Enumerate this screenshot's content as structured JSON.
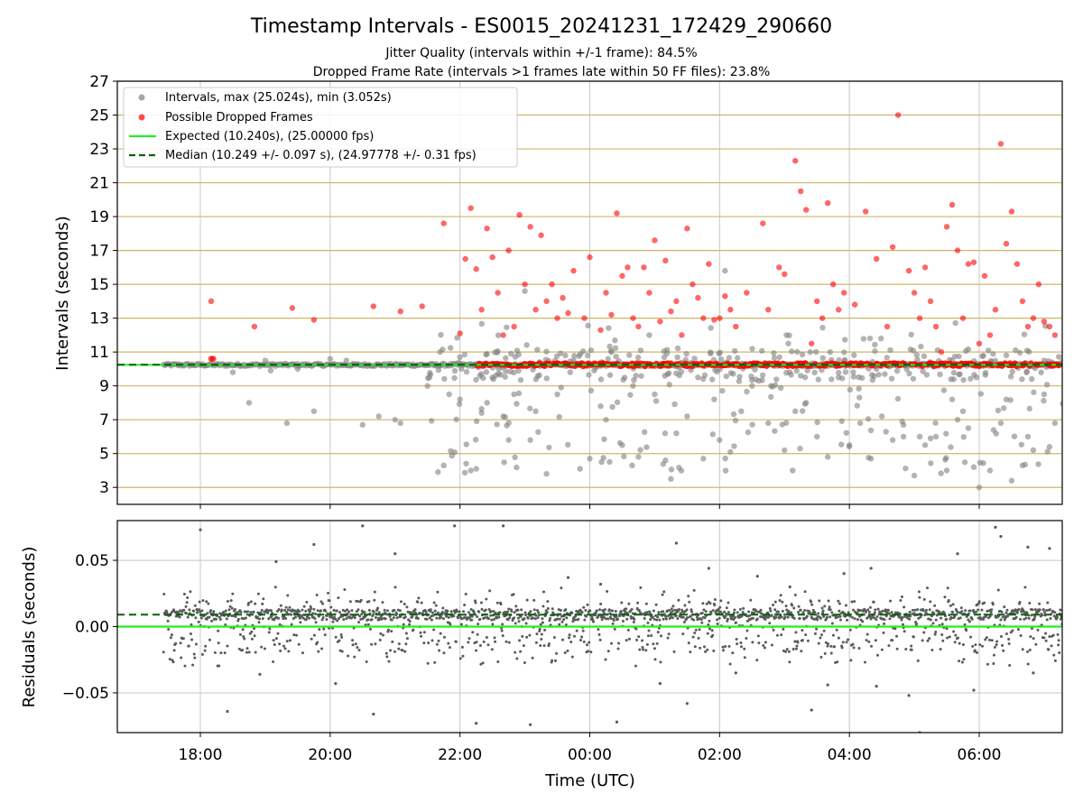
{
  "figure": {
    "title": "Timestamp Intervals - ES0015_20241231_172429_290660",
    "subtitle_1": "Jitter Quality (intervals within +/-1 frame): 84.5%",
    "subtitle_2": "Dropped Frame Rate (intervals >1 frames late within 50 FF files): 23.8%"
  },
  "colors": {
    "intervals": "#808080",
    "dropped": "#ff0000",
    "expected": "#22ee22",
    "median": "#006400",
    "hline": "#d2b469",
    "grid": "#c8c8c8",
    "residuals": "#5a5a5a"
  },
  "chart_data": [
    {
      "type": "scatter",
      "ylabel": "Intervals (seconds)",
      "ylim": [
        2,
        27
      ],
      "y_ticks": [
        "3",
        "5",
        "7",
        "9",
        "11",
        "13",
        "15",
        "17",
        "19",
        "21",
        "23",
        "25",
        "27"
      ],
      "x_tick_labels": [
        "18:00",
        "20:00",
        "22:00",
        "00:00",
        "02:00",
        "04:00",
        "06:00"
      ],
      "legend": [
        "Intervals, max (25.024s), min (3.052s)",
        "Possible Dropped Frames",
        "Expected (10.240s), (25.00000 fps)",
        "Median (10.249 +/- 0.097 s), (24.97778 +/- 0.31 fps)"
      ],
      "legend_position": "upper left",
      "expected_value": 10.24,
      "median_value": 10.249,
      "max_interval": 25.024,
      "min_interval": 3.052,
      "series": [
        {
          "name": "Intervals, max (25.024s), min (3.052s)",
          "x": [
            "18:30",
            "18:45",
            "19:00",
            "19:05",
            "19:20",
            "19:30",
            "19:45",
            "20:00",
            "20:15",
            "20:20",
            "20:30",
            "20:45",
            "21:00",
            "21:05",
            "21:30",
            "21:45",
            "21:50",
            "22:00",
            "22:10",
            "22:15",
            "22:20",
            "22:25",
            "22:30",
            "22:40",
            "22:45",
            "22:50",
            "23:00",
            "23:05",
            "23:10",
            "23:20",
            "23:30",
            "23:45",
            "00:00",
            "00:10",
            "00:15",
            "00:20",
            "00:30",
            "00:40",
            "00:45",
            "00:55",
            "01:00",
            "01:10",
            "01:15",
            "01:20",
            "01:30",
            "01:40",
            "01:45",
            "01:55",
            "02:00",
            "02:10",
            "02:20",
            "02:30",
            "02:45",
            "03:00",
            "03:10",
            "03:20",
            "03:30",
            "03:40",
            "03:50",
            "04:00",
            "04:10",
            "04:20",
            "04:30",
            "04:40",
            "04:50",
            "05:00",
            "05:10",
            "05:20",
            "05:30",
            "05:40",
            "05:50",
            "06:00",
            "06:10",
            "06:20",
            "06:30",
            "06:40",
            "06:50",
            "07:00",
            "07:05",
            "07:10",
            "05:55",
            "06:25",
            "06:45",
            "07:00",
            "02:05",
            "03:15",
            "04:25",
            "05:05",
            "05:15",
            "05:35",
            "05:45"
          ],
          "y": [
            9.8,
            8.0,
            10.5,
            9.9,
            6.8,
            10.0,
            7.5,
            10.6,
            10.5,
            10.2,
            6.7,
            7.2,
            7.0,
            6.8,
            9.0,
            4.3,
            8.5,
            8.2,
            4.0,
            4.1,
            7.4,
            8.0,
            9.5,
            7.2,
            5.8,
            8.5,
            14.6,
            5.8,
            7.5,
            3.8,
            8.5,
            10.5,
            4.7,
            7.8,
            7.0,
            11.0,
            5.5,
            9.0,
            4.8,
            12.0,
            8.5,
            4.6,
            3.5,
            6.2,
            7.2,
            9.5,
            4.7,
            8.2,
            5.8,
            5.1,
            7.5,
            9.0,
            6.8,
            5.2,
            7.5,
            8.0,
            6.0,
            4.8,
            9.5,
            5.5,
            6.8,
            4.7,
            7.2,
            5.8,
            6.0,
            3.7,
            5.5,
            6.0,
            4.0,
            7.0,
            6.5,
            3.0,
            4.0,
            6.8,
            3.4,
            4.3,
            5.2,
            8.5,
            5.4,
            6.8,
            4.2,
            8.2,
            6.0,
            10.5,
            15.8,
            9.6,
            10.0,
            6.0,
            5.9,
            8.2,
            7.5
          ]
        },
        {
          "name": "Possible Dropped Frames",
          "x": [
            "18:10",
            "18:50",
            "19:25",
            "19:45",
            "20:40",
            "21:05",
            "21:25",
            "21:45",
            "22:00",
            "22:05",
            "22:10",
            "22:15",
            "22:20",
            "22:25",
            "22:30",
            "22:35",
            "22:40",
            "22:45",
            "22:50",
            "22:55",
            "23:00",
            "23:05",
            "23:10",
            "23:15",
            "23:20",
            "23:25",
            "23:30",
            "23:35",
            "23:40",
            "23:45",
            "23:55",
            "00:00",
            "00:10",
            "00:15",
            "00:20",
            "00:25",
            "00:30",
            "00:35",
            "00:40",
            "00:45",
            "00:50",
            "00:55",
            "01:00",
            "01:05",
            "01:10",
            "01:15",
            "01:20",
            "01:25",
            "01:30",
            "01:35",
            "01:40",
            "01:45",
            "01:50",
            "01:55",
            "02:00",
            "02:05",
            "02:10",
            "02:15",
            "02:25",
            "02:40",
            "02:45",
            "02:55",
            "03:00",
            "03:10",
            "03:15",
            "03:20",
            "03:25",
            "03:30",
            "03:35",
            "03:40",
            "03:45",
            "03:50",
            "03:55",
            "04:05",
            "04:15",
            "04:25",
            "04:35",
            "04:40",
            "04:45",
            "04:55",
            "05:00",
            "05:05",
            "05:10",
            "05:15",
            "05:20",
            "05:25",
            "05:30",
            "05:35",
            "05:40",
            "05:45",
            "05:50",
            "05:55",
            "06:00",
            "06:05",
            "06:10",
            "06:15",
            "06:20",
            "06:25",
            "06:30",
            "06:35",
            "06:40",
            "06:45",
            "06:50",
            "06:55",
            "07:00",
            "07:05",
            "07:10"
          ],
          "y": [
            14.0,
            12.5,
            13.6,
            12.9,
            13.7,
            13.4,
            13.7,
            18.6,
            12.1,
            16.5,
            19.5,
            15.9,
            13.5,
            18.3,
            16.6,
            14.5,
            12.0,
            17.0,
            12.5,
            19.1,
            15.0,
            18.4,
            13.5,
            17.9,
            14.0,
            15.0,
            13.0,
            14.2,
            13.3,
            15.8,
            13.0,
            16.6,
            12.3,
            14.5,
            13.2,
            19.2,
            15.5,
            16.0,
            13.0,
            12.5,
            16.0,
            14.5,
            17.6,
            12.8,
            16.4,
            13.4,
            14.0,
            12.0,
            18.3,
            15.0,
            14.2,
            13.0,
            16.2,
            12.9,
            13.0,
            14.3,
            13.5,
            12.5,
            14.5,
            18.6,
            13.5,
            16.0,
            15.6,
            22.3,
            20.5,
            19.4,
            11.5,
            14.0,
            13.0,
            19.8,
            15.0,
            13.5,
            14.5,
            13.8,
            19.3,
            16.5,
            12.5,
            17.2,
            25.0,
            15.8,
            14.5,
            13.0,
            16.0,
            14.0,
            12.5,
            11.0,
            18.4,
            19.7,
            17.0,
            13.0,
            16.2,
            16.3,
            11.5,
            15.5,
            12.0,
            13.5,
            23.3,
            17.4,
            19.3,
            16.2,
            14.0,
            12.5,
            13.0,
            15.0,
            12.8,
            12.5,
            12.0
          ]
        }
      ]
    },
    {
      "type": "scatter",
      "xlabel": "Time (UTC)",
      "ylabel": "Residuals (seconds)",
      "ylim": [
        -0.08,
        0.08
      ],
      "y_ticks": [
        "0.05",
        "0.00",
        "−0.05"
      ],
      "x_tick_labels": [
        "18:00",
        "20:00",
        "22:00",
        "00:00",
        "02:00",
        "04:00",
        "06:00"
      ],
      "expected_residual": 0.0,
      "median_residual": 0.009,
      "series": [
        {
          "name": "",
          "x": [
            "18:00",
            "18:25",
            "18:55",
            "19:10",
            "19:45",
            "20:05",
            "20:30",
            "20:40",
            "21:00",
            "21:55",
            "22:15",
            "22:40",
            "23:05",
            "23:40",
            "00:10",
            "00:25",
            "01:05",
            "01:20",
            "01:30",
            "01:50",
            "02:15",
            "02:35",
            "03:05",
            "03:25",
            "03:40",
            "04:20",
            "04:55",
            "05:05",
            "05:40",
            "05:55",
            "06:15",
            "06:20",
            "06:45",
            "06:50",
            "07:05",
            "04:25",
            "03:55"
          ],
          "y": [
            0.073,
            -0.064,
            -0.036,
            0.049,
            0.062,
            -0.043,
            0.076,
            -0.066,
            0.055,
            0.076,
            -0.073,
            0.076,
            -0.074,
            0.037,
            0.032,
            -0.072,
            -0.043,
            0.063,
            -0.058,
            0.044,
            -0.035,
            0.038,
            0.03,
            -0.063,
            -0.044,
            0.044,
            -0.052,
            -0.08,
            0.055,
            -0.048,
            0.075,
            0.068,
            0.06,
            -0.035,
            0.059,
            -0.045,
            0.04
          ]
        }
      ]
    }
  ]
}
